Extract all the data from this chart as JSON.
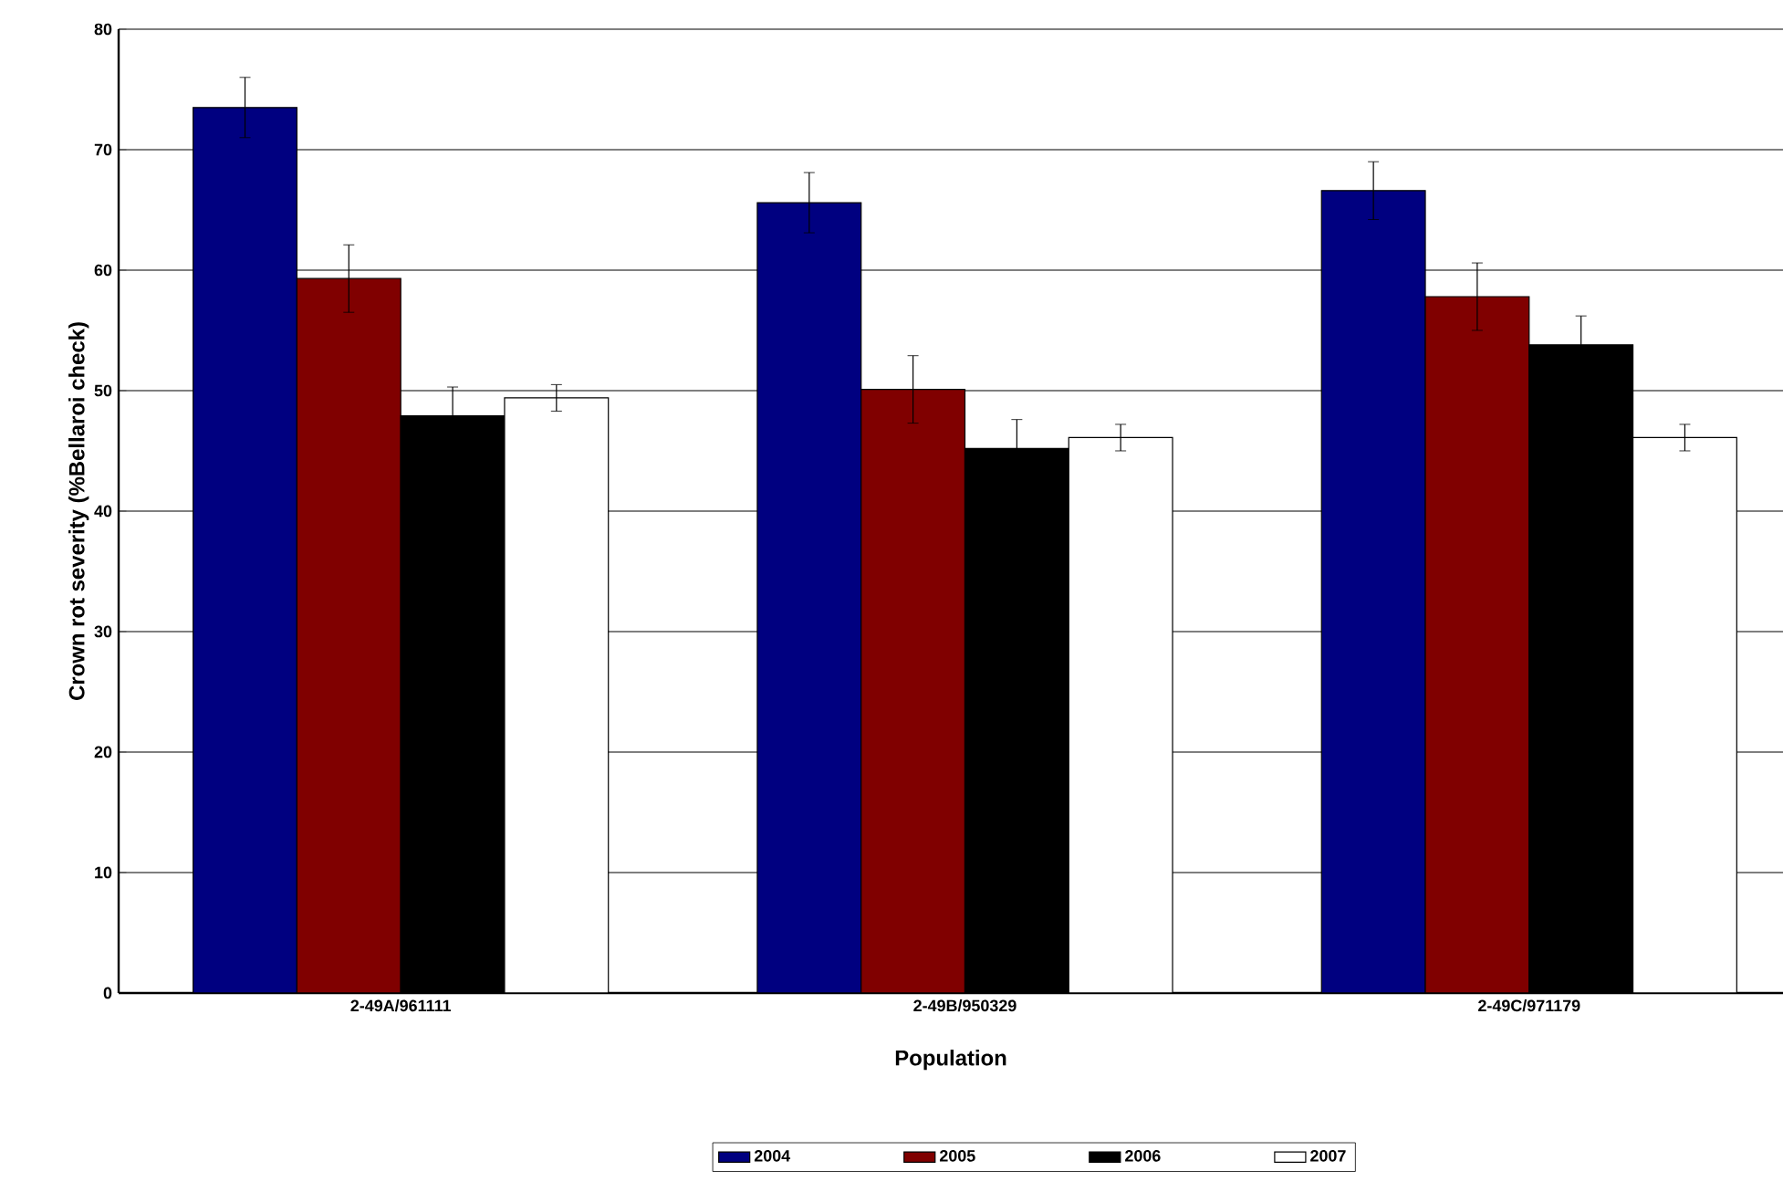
{
  "chart_data": {
    "type": "bar",
    "xlabel": "Population",
    "ylabel": "Crown rot severity (%Bellaroi check)",
    "categories": [
      "2-49A/961111",
      "2-49B/950329",
      "2-49C/971179"
    ],
    "series": [
      {
        "name": "2004",
        "color": "#000080",
        "values": [
          73.5,
          65.6,
          66.6
        ],
        "errors": [
          2.5,
          2.5,
          2.4
        ]
      },
      {
        "name": "2005",
        "color": "#800000",
        "values": [
          59.3,
          50.1,
          57.8
        ],
        "errors": [
          2.8,
          2.8,
          2.8
        ]
      },
      {
        "name": "2006",
        "color": "#000000",
        "values": [
          47.9,
          45.2,
          53.8
        ],
        "errors": [
          2.4,
          2.4,
          2.4
        ]
      },
      {
        "name": "2007",
        "color": "#ffffff",
        "values": [
          49.4,
          46.1,
          46.1
        ],
        "errors": [
          1.1,
          1.1,
          1.1
        ]
      }
    ],
    "ylim": [
      0,
      80
    ],
    "yticks": [
      0,
      10,
      20,
      30,
      40,
      50,
      60,
      70,
      80
    ],
    "grid": "y",
    "legend": "bottom"
  }
}
